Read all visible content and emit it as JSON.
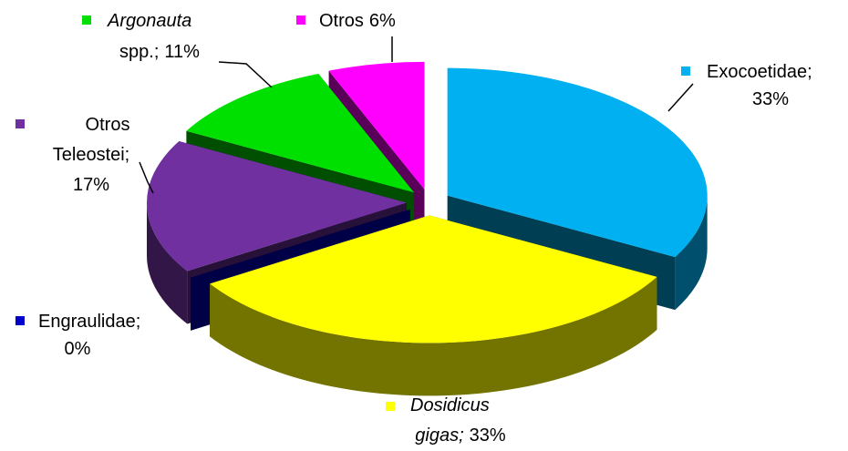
{
  "chart_data": {
    "type": "pie3d",
    "values": [
      33,
      33,
      0,
      17,
      11,
      6
    ],
    "colors": [
      "#00b0f0",
      "#ffff00",
      "#0000cc",
      "#7030a0",
      "#00e000",
      "#ff00ff"
    ],
    "labels": [
      [
        [
          {
            "text": "Exocoetidae;"
          }
        ],
        [
          {
            "text": "33%"
          }
        ]
      ],
      [
        [
          {
            "text": "Dosidicus",
            "italic": true
          }
        ],
        [
          {
            "text": "gigas;",
            "italic": true
          },
          {
            "text": "33%"
          }
        ]
      ],
      [
        [
          {
            "text": "Engraulidae;"
          }
        ],
        [
          {
            "text": "0%"
          }
        ]
      ],
      [
        [
          {
            "text": "Otros"
          }
        ],
        [
          {
            "text": "Teleostei;"
          }
        ],
        [
          {
            "text": "17%"
          }
        ]
      ],
      [
        [
          {
            "text": "Argonauta",
            "italic": true
          }
        ],
        [
          {
            "text": "spp.;"
          },
          {
            "text": "11%"
          }
        ]
      ],
      [
        [
          {
            "text": "Otros"
          },
          {
            "text": "6%"
          }
        ]
      ]
    ]
  }
}
